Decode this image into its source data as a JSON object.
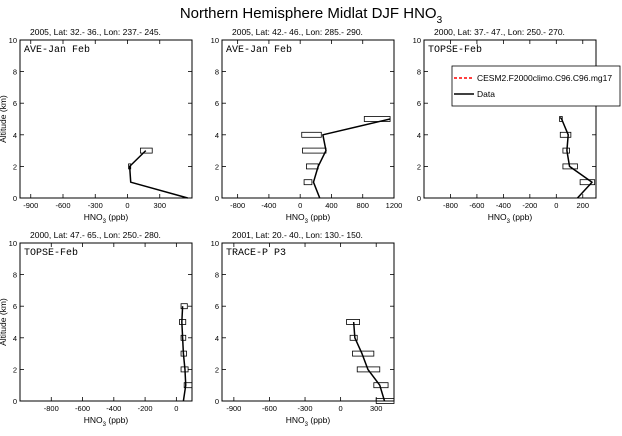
{
  "figure": {
    "title": "Northern Hemisphere Midlat DJF HNO",
    "title_sub": "3"
  },
  "legend": {
    "entries": [
      {
        "label": "CESM2.F2000climo.C96.C96.mg17",
        "color": "#ff0000",
        "dash": true
      },
      {
        "label": "Data",
        "color": "#000000",
        "dash": false
      }
    ]
  },
  "chart_data": [
    {
      "type": "line",
      "header": "2005, Lat: 32.- 36., Lon: 237.- 245.",
      "name": "AVE-Jan Feb",
      "xlabel": "HNO3 (ppb)",
      "ylabel": "Altitude (km)",
      "xlim": [
        -1000,
        600
      ],
      "ylim": [
        0,
        10
      ],
      "xticks": [
        -900,
        -600,
        -300,
        0,
        300
      ],
      "yticks": [
        0,
        2,
        4,
        6,
        8,
        10
      ],
      "data_line": {
        "x": [
          560,
          30,
          20,
          170
        ],
        "y": [
          0,
          1,
          2,
          3
        ]
      },
      "boxes": [
        {
          "y": 3,
          "lo": 120,
          "hi": 230
        },
        {
          "y": 2,
          "lo": 10,
          "hi": 30
        }
      ]
    },
    {
      "type": "line",
      "header": "2005, Lat: 42.- 46., Lon: 285.- 290.",
      "name": "AVE-Jan Feb",
      "xlabel": "HNO3 (ppb)",
      "ylabel": "",
      "xlim": [
        -1000,
        1200
      ],
      "ylim": [
        0,
        10
      ],
      "xticks": [
        -800,
        -400,
        0,
        400,
        800,
        1200
      ],
      "yticks": [
        0,
        2,
        4,
        6,
        8,
        10
      ],
      "data_line": {
        "x": [
          250,
          170,
          230,
          330,
          290,
          1150
        ],
        "y": [
          0,
          1,
          2,
          3,
          4,
          5
        ]
      },
      "boxes": [
        {
          "y": 5,
          "lo": 820,
          "hi": 1150
        },
        {
          "y": 4,
          "lo": 20,
          "hi": 270
        },
        {
          "y": 3,
          "lo": 30,
          "hi": 330
        },
        {
          "y": 2,
          "lo": 80,
          "hi": 230
        },
        {
          "y": 1,
          "lo": 50,
          "hi": 150
        }
      ]
    },
    {
      "type": "line",
      "header": "2000, Lat: 37.- 47., Lon: 250.- 270.",
      "name": "TOPSE-Feb",
      "xlabel": "HNO3 (ppb)",
      "ylabel": "",
      "xlim": [
        -1000,
        300
      ],
      "ylim": [
        0,
        10
      ],
      "xticks": [
        -800,
        -600,
        -400,
        -200,
        0,
        200
      ],
      "yticks": [
        0,
        2,
        4,
        6,
        8,
        10
      ],
      "data_line": {
        "x": [
          160,
          270,
          100,
          80,
          90,
          40,
          30
        ],
        "y": [
          0,
          1,
          2,
          3,
          4,
          5,
          5.1
        ]
      },
      "boxes": [
        {
          "y": 5,
          "lo": 25,
          "hi": 45
        },
        {
          "y": 4,
          "lo": 30,
          "hi": 110
        },
        {
          "y": 3,
          "lo": 50,
          "hi": 100
        },
        {
          "y": 2,
          "lo": 50,
          "hi": 160
        },
        {
          "y": 1,
          "lo": 180,
          "hi": 290
        }
      ]
    },
    {
      "type": "line",
      "header": "2000, Lat: 47.- 65., Lon: 250.- 280.",
      "name": "TOPSE-Feb",
      "xlabel": "HNO3 (ppb)",
      "ylabel": "Altitude (km)",
      "xlim": [
        -1000,
        100
      ],
      "ylim": [
        0,
        10
      ],
      "xticks": [
        -800,
        -600,
        -400,
        -200,
        0
      ],
      "yticks": [
        0,
        2,
        4,
        6,
        8,
        10
      ],
      "data_line": {
        "x": [
          45,
          60,
          55,
          45,
          40,
          35,
          40
        ],
        "y": [
          0,
          1,
          2,
          3,
          4,
          5,
          6
        ]
      },
      "boxes": [
        {
          "y": 6,
          "lo": 30,
          "hi": 70
        },
        {
          "y": 5,
          "lo": 20,
          "hi": 60
        },
        {
          "y": 4,
          "lo": 30,
          "hi": 60
        },
        {
          "y": 3,
          "lo": 30,
          "hi": 65
        },
        {
          "y": 2,
          "lo": 30,
          "hi": 75
        },
        {
          "y": 1,
          "lo": 50,
          "hi": 100
        }
      ]
    },
    {
      "type": "line",
      "header": "2001, Lat: 20.- 40., Lon: 130.- 150.",
      "name": "TRACE-P P3",
      "xlabel": "HNO3 (ppb)",
      "ylabel": "",
      "xlim": [
        -1000,
        450
      ],
      "ylim": [
        0,
        10
      ],
      "xticks": [
        -900,
        -600,
        -300,
        0,
        300
      ],
      "yticks": [
        0,
        2,
        4,
        6,
        8,
        10
      ],
      "data_line": {
        "x": [
          370,
          330,
          230,
          180,
          120,
          110
        ],
        "y": [
          0,
          1,
          2,
          3,
          4,
          5
        ]
      },
      "boxes": [
        {
          "y": 5,
          "lo": 50,
          "hi": 160
        },
        {
          "y": 4,
          "lo": 80,
          "hi": 140
        },
        {
          "y": 3,
          "lo": 100,
          "hi": 280
        },
        {
          "y": 2,
          "lo": 140,
          "hi": 330
        },
        {
          "y": 1,
          "lo": 280,
          "hi": 400
        },
        {
          "y": 0,
          "lo": 300,
          "hi": 450
        }
      ]
    }
  ]
}
